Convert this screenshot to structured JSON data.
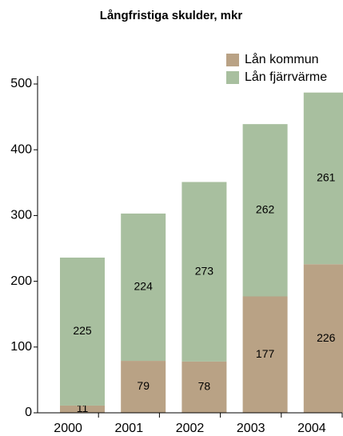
{
  "chart_data": {
    "type": "stacked_bar",
    "title": "Långfristiga skulder, mkr",
    "categories": [
      "2000",
      "2001",
      "2002",
      "2003",
      "2004"
    ],
    "series": [
      {
        "name": "Lån kommun",
        "color": "#b9a285",
        "values": [
          11,
          79,
          78,
          177,
          226
        ]
      },
      {
        "name": "Lån fjärrvärme",
        "color": "#a8bf9f",
        "values": [
          225,
          224,
          273,
          262,
          261
        ]
      }
    ],
    "ylim": [
      0,
      500
    ],
    "yticks": [
      0,
      100,
      200,
      300,
      400,
      500
    ],
    "legend": "top-right"
  }
}
